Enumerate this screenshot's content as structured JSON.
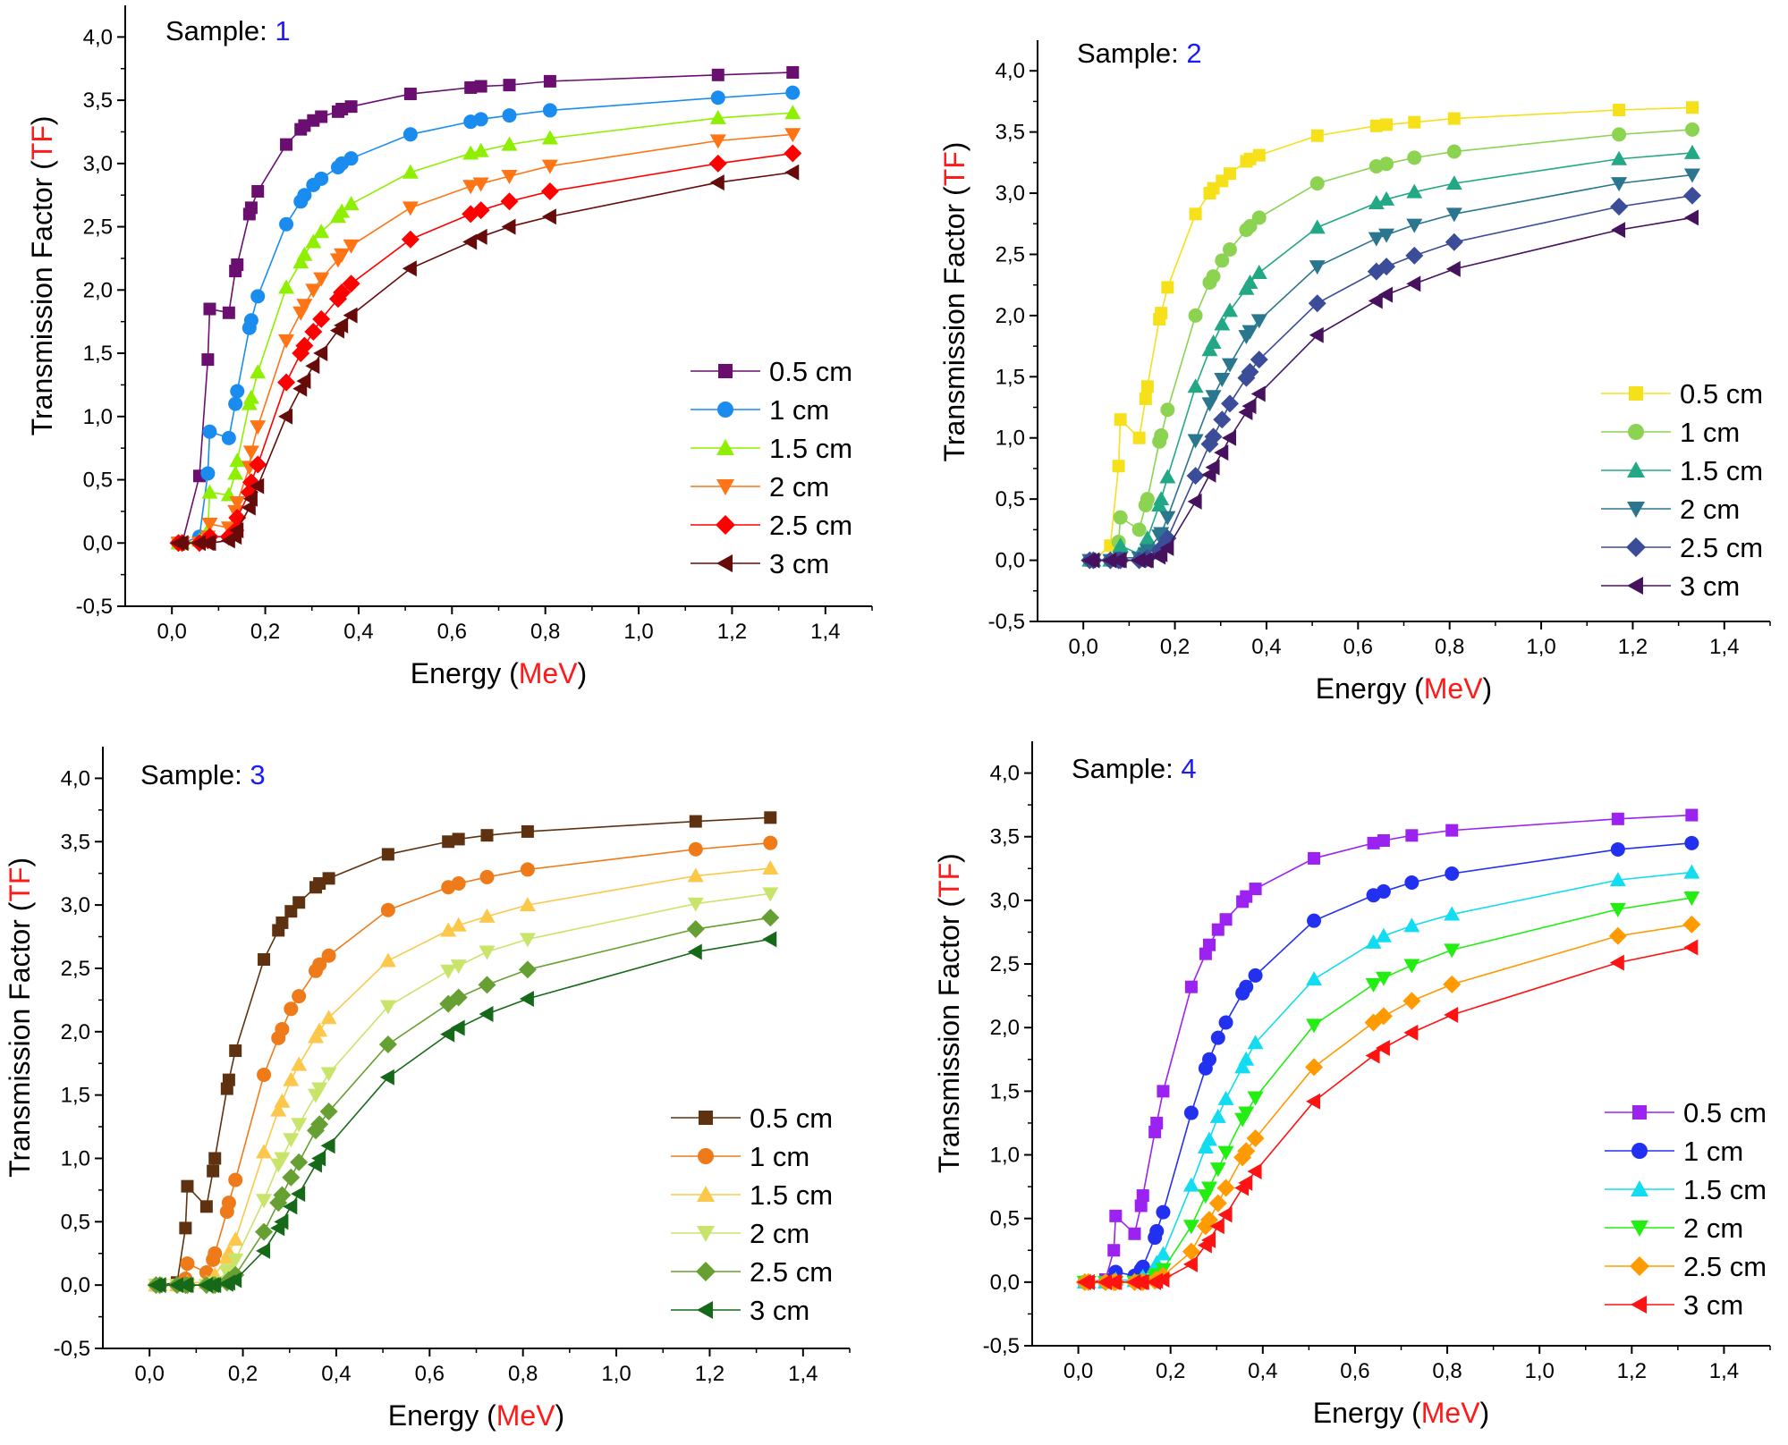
{
  "chart_data": [
    {
      "type": "line",
      "title_prefix": "Sample: ",
      "title_value": "1",
      "xlabel_prefix": "Energy (",
      "xlabel_unit": "MeV",
      "xlabel_suffix": ")",
      "ylabel_prefix": "Transmission Factor (",
      "ylabel_unit": "TF",
      "ylabel_suffix": ")",
      "xlim": [
        -0.1,
        1.5
      ],
      "ylim": [
        -0.5,
        4.25
      ],
      "xticks": [
        "0,0",
        "0,2",
        "0,4",
        "0,6",
        "0,8",
        "1,0",
        "1,2",
        "1,4"
      ],
      "yticks": [
        "-0,5",
        "0,0",
        "0,5",
        "1,0",
        "1,5",
        "2,0",
        "2,5",
        "3,0",
        "3,5",
        "4,0"
      ],
      "legend_position": "center-right",
      "grid": false,
      "x": [
        0.014,
        0.022,
        0.059,
        0.077,
        0.081,
        0.122,
        0.136,
        0.14,
        0.166,
        0.17,
        0.184,
        0.245,
        0.276,
        0.284,
        0.303,
        0.32,
        0.356,
        0.364,
        0.384,
        0.511,
        0.64,
        0.662,
        0.723,
        0.81,
        1.17,
        1.33
      ],
      "series": [
        {
          "name": "0.5 cm",
          "marker": "square",
          "color": "#6a0f70",
          "values": [
            0,
            0,
            0.53,
            1.45,
            1.85,
            1.82,
            2.15,
            2.2,
            2.6,
            2.65,
            2.78,
            3.15,
            3.27,
            3.3,
            3.34,
            3.37,
            3.41,
            3.43,
            3.45,
            3.55,
            3.6,
            3.61,
            3.62,
            3.65,
            3.7,
            3.72
          ]
        },
        {
          "name": "1 cm",
          "marker": "circle",
          "color": "#1a8cf0",
          "values": [
            0,
            0,
            0.05,
            0.55,
            0.88,
            0.83,
            1.1,
            1.2,
            1.7,
            1.76,
            1.95,
            2.52,
            2.7,
            2.75,
            2.83,
            2.88,
            2.97,
            3.0,
            3.04,
            3.23,
            3.33,
            3.35,
            3.38,
            3.42,
            3.52,
            3.56
          ]
        },
        {
          "name": "1.5 cm",
          "marker": "triangle-up",
          "color": "#8ef000",
          "values": [
            0,
            0,
            0.02,
            0.1,
            0.4,
            0.38,
            0.55,
            0.65,
            1.1,
            1.15,
            1.35,
            2.02,
            2.22,
            2.28,
            2.38,
            2.46,
            2.58,
            2.62,
            2.68,
            2.93,
            3.08,
            3.1,
            3.15,
            3.2,
            3.36,
            3.4
          ]
        },
        {
          "name": "2 cm",
          "marker": "triangle-down",
          "color": "#ff7415",
          "values": [
            0,
            0,
            0,
            0.05,
            0.15,
            0.12,
            0.25,
            0.32,
            0.6,
            0.72,
            0.92,
            1.6,
            1.82,
            1.88,
            2.0,
            2.09,
            2.24,
            2.28,
            2.35,
            2.65,
            2.82,
            2.84,
            2.9,
            2.98,
            3.18,
            3.23
          ]
        },
        {
          "name": "2.5 cm",
          "marker": "diamond",
          "color": "#ff0000",
          "values": [
            0,
            0,
            0,
            0.02,
            0.05,
            0.05,
            0.1,
            0.2,
            0.4,
            0.48,
            0.62,
            1.27,
            1.5,
            1.56,
            1.67,
            1.77,
            1.93,
            1.98,
            2.05,
            2.4,
            2.6,
            2.63,
            2.7,
            2.78,
            3.0,
            3.08
          ]
        },
        {
          "name": "3 cm",
          "marker": "triangle-left",
          "color": "#660a0a",
          "values": [
            0,
            0,
            0,
            0,
            0,
            0.02,
            0.05,
            0.1,
            0.28,
            0.35,
            0.45,
            1.0,
            1.22,
            1.28,
            1.4,
            1.5,
            1.68,
            1.72,
            1.8,
            2.17,
            2.38,
            2.42,
            2.5,
            2.58,
            2.85,
            2.93
          ]
        }
      ]
    },
    {
      "type": "line",
      "title_prefix": "Sample: ",
      "title_value": "2",
      "xlabel_prefix": "Energy (",
      "xlabel_unit": "MeV",
      "xlabel_suffix": ")",
      "ylabel_prefix": "Transmission Factor (",
      "ylabel_unit": "TF",
      "ylabel_suffix": ")",
      "xlim": [
        -0.1,
        1.5
      ],
      "ylim": [
        -0.5,
        4.25
      ],
      "xticks": [
        "0,0",
        "0,2",
        "0,4",
        "0,6",
        "0,8",
        "1,0",
        "1,2",
        "1,4"
      ],
      "yticks": [
        "-0,5",
        "0,0",
        "0,5",
        "1,0",
        "1,5",
        "2,0",
        "2,5",
        "3,0",
        "3,5",
        "4,0"
      ],
      "legend_position": "center-right",
      "grid": false,
      "x": [
        0.014,
        0.022,
        0.059,
        0.077,
        0.081,
        0.122,
        0.136,
        0.14,
        0.166,
        0.17,
        0.184,
        0.245,
        0.276,
        0.284,
        0.303,
        0.32,
        0.356,
        0.364,
        0.384,
        0.511,
        0.64,
        0.662,
        0.723,
        0.81,
        1.17,
        1.33
      ],
      "series": [
        {
          "name": "0.5 cm",
          "marker": "square",
          "color": "#f5e01a",
          "values": [
            0,
            0,
            0.12,
            0.77,
            1.15,
            1.0,
            1.32,
            1.42,
            1.97,
            2.02,
            2.23,
            2.83,
            3.0,
            3.04,
            3.1,
            3.16,
            3.26,
            3.28,
            3.31,
            3.47,
            3.55,
            3.56,
            3.58,
            3.61,
            3.68,
            3.7
          ]
        },
        {
          "name": "1 cm",
          "marker": "circle",
          "color": "#8cd352",
          "values": [
            0,
            0,
            0,
            0.15,
            0.35,
            0.25,
            0.45,
            0.5,
            0.97,
            1.02,
            1.23,
            2.0,
            2.27,
            2.32,
            2.45,
            2.54,
            2.7,
            2.73,
            2.8,
            3.08,
            3.22,
            3.24,
            3.29,
            3.34,
            3.48,
            3.52
          ]
        },
        {
          "name": "1.5 cm",
          "marker": "triangle-up",
          "color": "#22a884",
          "values": [
            0,
            0,
            0,
            0.05,
            0.12,
            0.05,
            0.12,
            0.18,
            0.45,
            0.5,
            0.68,
            1.42,
            1.72,
            1.78,
            1.93,
            2.04,
            2.22,
            2.27,
            2.35,
            2.72,
            2.92,
            2.95,
            3.01,
            3.08,
            3.28,
            3.33
          ]
        },
        {
          "name": "2 cm",
          "marker": "triangle-down",
          "color": "#2a768e",
          "values": [
            0,
            0,
            0,
            0,
            0.02,
            0.02,
            0.05,
            0.08,
            0.2,
            0.22,
            0.35,
            0.98,
            1.28,
            1.34,
            1.48,
            1.6,
            1.83,
            1.87,
            1.96,
            2.4,
            2.63,
            2.66,
            2.74,
            2.83,
            3.08,
            3.15
          ]
        },
        {
          "name": "2.5 cm",
          "marker": "diamond",
          "color": "#3b4c98",
          "values": [
            0,
            0,
            0,
            0,
            0,
            0,
            0.01,
            0.02,
            0.08,
            0.1,
            0.18,
            0.69,
            0.95,
            1.01,
            1.15,
            1.28,
            1.49,
            1.54,
            1.64,
            2.1,
            2.36,
            2.4,
            2.49,
            2.6,
            2.89,
            2.98
          ]
        },
        {
          "name": "3 cm",
          "marker": "triangle-left",
          "color": "#46125e",
          "values": [
            0,
            0,
            0,
            0,
            0,
            0,
            0,
            0,
            0.03,
            0.05,
            0.1,
            0.48,
            0.7,
            0.76,
            0.88,
            1.0,
            1.21,
            1.26,
            1.36,
            1.84,
            2.12,
            2.17,
            2.26,
            2.38,
            2.7,
            2.8
          ]
        }
      ]
    },
    {
      "type": "line",
      "title_prefix": "Sample: ",
      "title_value": "3",
      "xlabel_prefix": "Energy (",
      "xlabel_unit": "MeV",
      "xlabel_suffix": ")",
      "ylabel_prefix": "Transmission Factor (",
      "ylabel_unit": "TF",
      "ylabel_suffix": ")",
      "xlim": [
        -0.1,
        1.5
      ],
      "ylim": [
        -0.5,
        4.25
      ],
      "xticks": [
        "0,0",
        "0,2",
        "0,4",
        "0,6",
        "0,8",
        "1,0",
        "1,2",
        "1,4"
      ],
      "yticks": [
        "-0,5",
        "0,0",
        "0,5",
        "1,0",
        "1,5",
        "2,0",
        "2,5",
        "3,0",
        "3,5",
        "4,0"
      ],
      "legend_position": "center-right",
      "grid": false,
      "x": [
        0.014,
        0.022,
        0.059,
        0.077,
        0.081,
        0.122,
        0.136,
        0.14,
        0.166,
        0.17,
        0.184,
        0.245,
        0.276,
        0.284,
        0.303,
        0.32,
        0.356,
        0.364,
        0.384,
        0.511,
        0.64,
        0.662,
        0.723,
        0.81,
        1.17,
        1.33
      ],
      "series": [
        {
          "name": "0.5 cm",
          "marker": "square",
          "color": "#5e3210",
          "values": [
            0,
            0,
            0.02,
            0.45,
            0.78,
            0.62,
            0.9,
            1.0,
            1.55,
            1.62,
            1.85,
            2.57,
            2.8,
            2.86,
            2.95,
            3.02,
            3.14,
            3.17,
            3.21,
            3.4,
            3.5,
            3.52,
            3.55,
            3.58,
            3.66,
            3.69
          ]
        },
        {
          "name": "1 cm",
          "marker": "circle",
          "color": "#ee7a1a",
          "values": [
            0,
            0,
            0,
            0.05,
            0.17,
            0.1,
            0.2,
            0.25,
            0.58,
            0.65,
            0.83,
            1.66,
            1.95,
            2.02,
            2.18,
            2.28,
            2.48,
            2.53,
            2.6,
            2.96,
            3.14,
            3.17,
            3.22,
            3.28,
            3.44,
            3.49
          ]
        },
        {
          "name": "1.5 cm",
          "marker": "triangle-up",
          "color": "#fcc84a",
          "values": [
            0,
            0,
            0,
            0,
            0.02,
            0.02,
            0.05,
            0.08,
            0.22,
            0.26,
            0.36,
            1.05,
            1.38,
            1.45,
            1.62,
            1.74,
            1.96,
            2.01,
            2.11,
            2.56,
            2.8,
            2.84,
            2.91,
            3.0,
            3.23,
            3.29
          ]
        },
        {
          "name": "2 cm",
          "marker": "triangle-down",
          "color": "#c9e46a",
          "values": [
            0,
            0,
            0,
            0,
            0,
            0,
            0.01,
            0.02,
            0.1,
            0.12,
            0.2,
            0.67,
            0.95,
            1.0,
            1.15,
            1.27,
            1.5,
            1.55,
            1.67,
            2.2,
            2.48,
            2.52,
            2.63,
            2.73,
            3.01,
            3.09
          ]
        },
        {
          "name": "2.5 cm",
          "marker": "diamond",
          "color": "#66a032",
          "values": [
            0,
            0,
            0,
            0,
            0,
            0,
            0,
            0,
            0.02,
            0.04,
            0.08,
            0.42,
            0.65,
            0.71,
            0.85,
            0.97,
            1.22,
            1.27,
            1.37,
            1.9,
            2.22,
            2.27,
            2.37,
            2.49,
            2.81,
            2.9
          ]
        },
        {
          "name": "3 cm",
          "marker": "triangle-left",
          "color": "#17691a",
          "values": [
            0,
            0,
            0,
            0,
            0,
            0,
            0,
            0,
            0.01,
            0.02,
            0.04,
            0.27,
            0.45,
            0.5,
            0.62,
            0.72,
            0.95,
            1.0,
            1.1,
            1.64,
            1.98,
            2.03,
            2.14,
            2.26,
            2.63,
            2.73
          ]
        }
      ]
    },
    {
      "type": "line",
      "title_prefix": "Sample: ",
      "title_value": "4",
      "xlabel_prefix": "Energy (",
      "xlabel_unit": "MeV",
      "xlabel_suffix": ")",
      "ylabel_prefix": "Transmission Factor (",
      "ylabel_unit": "TF",
      "ylabel_suffix": ")",
      "xlim": [
        -0.1,
        1.5
      ],
      "ylim": [
        -0.5,
        4.25
      ],
      "xticks": [
        "0,0",
        "0,2",
        "0,4",
        "0,6",
        "0,8",
        "1,0",
        "1,2",
        "1,4"
      ],
      "yticks": [
        "-0,5",
        "0,0",
        "0,5",
        "1,0",
        "1,5",
        "2,0",
        "2,5",
        "3,0",
        "3,5",
        "4,0"
      ],
      "legend_position": "center-right",
      "grid": false,
      "x": [
        0.014,
        0.022,
        0.059,
        0.077,
        0.081,
        0.122,
        0.136,
        0.14,
        0.166,
        0.17,
        0.184,
        0.245,
        0.276,
        0.284,
        0.303,
        0.32,
        0.356,
        0.364,
        0.384,
        0.511,
        0.64,
        0.662,
        0.723,
        0.81,
        1.17,
        1.33
      ],
      "series": [
        {
          "name": "0.5 cm",
          "marker": "square",
          "color": "#9b22f0",
          "values": [
            0,
            0,
            0.02,
            0.25,
            0.52,
            0.38,
            0.6,
            0.68,
            1.18,
            1.25,
            1.5,
            2.32,
            2.58,
            2.65,
            2.77,
            2.85,
            2.99,
            3.03,
            3.09,
            3.33,
            3.45,
            3.47,
            3.51,
            3.55,
            3.64,
            3.67
          ]
        },
        {
          "name": "1 cm",
          "marker": "circle",
          "color": "#2230f0",
          "values": [
            0,
            0,
            0,
            0.03,
            0.08,
            0.05,
            0.1,
            0.12,
            0.35,
            0.4,
            0.55,
            1.33,
            1.68,
            1.75,
            1.92,
            2.04,
            2.27,
            2.32,
            2.41,
            2.84,
            3.04,
            3.07,
            3.14,
            3.21,
            3.4,
            3.45
          ]
        },
        {
          "name": "1.5 cm",
          "marker": "triangle-up",
          "color": "#12dcf0",
          "values": [
            0,
            0,
            0,
            0,
            0.02,
            0.01,
            0.02,
            0.04,
            0.12,
            0.15,
            0.22,
            0.76,
            1.06,
            1.12,
            1.3,
            1.44,
            1.69,
            1.75,
            1.88,
            2.38,
            2.67,
            2.72,
            2.8,
            2.89,
            3.16,
            3.22
          ]
        },
        {
          "name": "2 cm",
          "marker": "triangle-down",
          "color": "#22ee12",
          "values": [
            0,
            0,
            0,
            0,
            0,
            0,
            0.01,
            0.01,
            0.04,
            0.06,
            0.1,
            0.44,
            0.68,
            0.74,
            0.89,
            1.02,
            1.28,
            1.33,
            1.45,
            2.02,
            2.34,
            2.39,
            2.49,
            2.61,
            2.93,
            3.02
          ]
        },
        {
          "name": "2.5 cm",
          "marker": "diamond",
          "color": "#ff9a00",
          "values": [
            0,
            0,
            0,
            0,
            0,
            0,
            0,
            0,
            0.01,
            0.02,
            0.05,
            0.24,
            0.44,
            0.49,
            0.62,
            0.74,
            0.98,
            1.03,
            1.13,
            1.69,
            2.04,
            2.09,
            2.21,
            2.34,
            2.72,
            2.81
          ]
        },
        {
          "name": "3 cm",
          "marker": "triangle-left",
          "color": "#ff1212",
          "values": [
            0,
            0,
            0,
            0,
            0,
            0,
            0,
            0,
            0,
            0.01,
            0.02,
            0.14,
            0.29,
            0.33,
            0.44,
            0.53,
            0.74,
            0.78,
            0.87,
            1.42,
            1.78,
            1.84,
            1.96,
            2.1,
            2.51,
            2.63
          ]
        }
      ]
    }
  ],
  "colors": {
    "title_value": "#1a1aff",
    "unit": "#ff1a1a",
    "text": "#000000"
  }
}
